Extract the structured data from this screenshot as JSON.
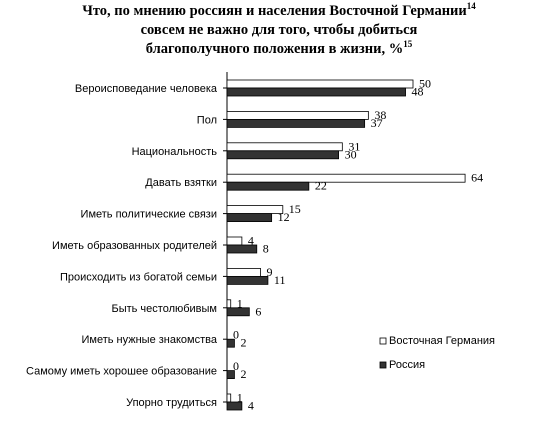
{
  "chart_data": {
    "type": "bar",
    "orientation": "horizontal",
    "title": {
      "line1": "Что, по мнению россиян и населения Восточной Германии",
      "line1_sup": "14",
      "line2": "совсем не важно для того, чтобы добиться",
      "line3": "благополучного положения в жизни, %",
      "line3_sup": "15"
    },
    "categories": [
      "Вероисповедание человека",
      "Пол",
      "Национальность",
      "Давать взятки",
      "Иметь политические  связи",
      "Иметь образованных родителей",
      "Происходить из богатой семьи",
      "Быть честолюбивым",
      "Иметь нужные  знакомства",
      "Самому иметь хорошее образование",
      "Упорно трудиться"
    ],
    "series": [
      {
        "name": "Восточная Германия",
        "color": "#ffffff",
        "values": [
          50,
          38,
          31,
          64,
          15,
          4,
          9,
          1,
          0,
          0,
          1
        ]
      },
      {
        "name": "Россия",
        "color": "#333333",
        "values": [
          48,
          37,
          30,
          22,
          12,
          8,
          11,
          6,
          2,
          2,
          4
        ]
      }
    ],
    "xlim": [
      0,
      64
    ],
    "grid": false,
    "legend_position": "bottom-right"
  }
}
